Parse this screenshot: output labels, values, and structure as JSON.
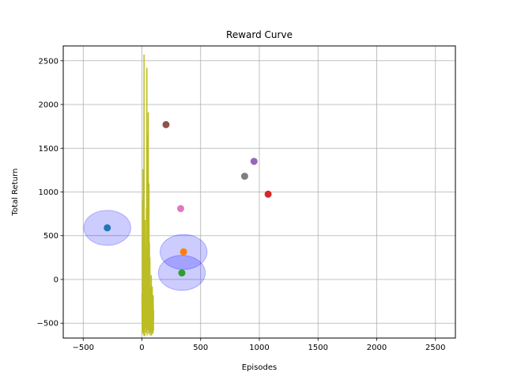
{
  "chart_data": {
    "type": "scatter",
    "title": "Reward Curve",
    "xlabel": "Episodes",
    "ylabel": "Total Return",
    "xlim": [
      -670,
      2670
    ],
    "ylim": [
      -670,
      2670
    ],
    "grid": true,
    "xticks": [
      -500,
      0,
      500,
      1000,
      1500,
      2000,
      2500
    ],
    "yticks": [
      -500,
      0,
      500,
      1000,
      1500,
      2000,
      2500
    ],
    "points": [
      {
        "x": -295,
        "y": 590,
        "color": "#1f77b4"
      },
      {
        "x": 355,
        "y": 315,
        "color": "#ff7f0e"
      },
      {
        "x": 340,
        "y": 75,
        "color": "#2ca02c"
      },
      {
        "x": 1075,
        "y": 975,
        "color": "#d62728"
      },
      {
        "x": 955,
        "y": 1350,
        "color": "#9467bd"
      },
      {
        "x": 205,
        "y": 1770,
        "color": "#8c564b"
      },
      {
        "x": 330,
        "y": 810,
        "color": "#e377c2"
      },
      {
        "x": 875,
        "y": 1180,
        "color": "#7f7f7f"
      }
    ],
    "ellipses": [
      {
        "cx": -295,
        "cy": 590,
        "rx": 200,
        "ry": 200
      },
      {
        "cx": 355,
        "cy": 315,
        "rx": 200,
        "ry": 200
      },
      {
        "cx": 340,
        "cy": 75,
        "rx": 200,
        "ry": 200
      }
    ],
    "ellipse_color": "#0000ff",
    "line_series": {
      "color": "#bcbd22",
      "x": [
        0,
        2,
        4,
        6,
        8,
        10,
        12,
        14,
        16,
        18,
        20,
        22,
        24,
        26,
        28,
        30,
        32,
        34,
        36,
        38,
        40,
        42,
        44,
        46,
        48,
        50,
        52,
        54,
        56,
        58,
        60,
        62,
        64,
        66,
        68,
        70,
        72,
        74,
        76,
        78,
        80,
        82,
        84,
        86,
        88,
        90,
        92,
        94,
        96,
        98,
        100
      ],
      "y": [
        -160,
        -480,
        -620,
        900,
        -600,
        1260,
        -550,
        50,
        -640,
        2570,
        -420,
        -350,
        -650,
        680,
        -560,
        -90,
        -520,
        230,
        -610,
        820,
        -300,
        2420,
        -640,
        150,
        -580,
        1650,
        -500,
        1910,
        -330,
        -620,
        1100,
        -570,
        420,
        -610,
        250,
        -640,
        -100,
        -600,
        -300,
        -520,
        50,
        -640,
        -250,
        -610,
        -80,
        -560,
        -400,
        -620,
        -180,
        -590,
        -350
      ]
    }
  }
}
